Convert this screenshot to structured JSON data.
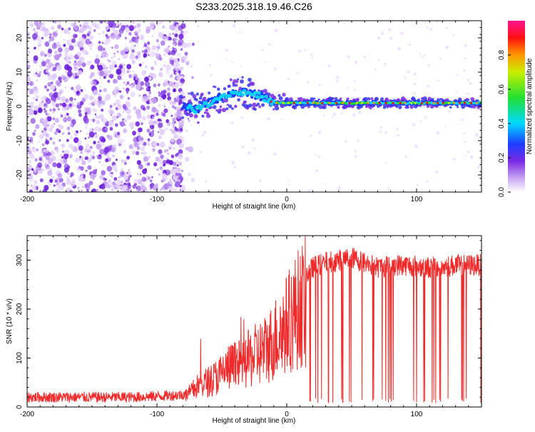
{
  "title": "S233.2025.318.19.46.C26",
  "chart_data": [
    {
      "type": "heatmap",
      "name": "spectrogram",
      "xlabel": "Height of straight line (km)",
      "ylabel": "Frequency (Hz)",
      "xlim": [
        -200,
        150
      ],
      "ylim": [
        -25,
        25
      ],
      "xticks": [
        -200,
        -100,
        0,
        100
      ],
      "yticks": [
        -20,
        -10,
        0,
        10,
        20
      ],
      "colorbar": {
        "label": "Normalized spectral amplitude",
        "range": [
          0,
          1
        ],
        "ticks": [
          0.0,
          0.2,
          0.4,
          0.6,
          0.8
        ],
        "colors": [
          "#ffffff",
          "#7a2be3",
          "#1e3cff",
          "#00d8ff",
          "#22e032",
          "#c8ee00",
          "#ff9900",
          "#ff1010",
          "#ff1493"
        ]
      },
      "noise_region_km": [
        -200,
        -80
      ],
      "signal_trace": [
        {
          "x": -80,
          "y": 0
        },
        {
          "x": -70,
          "y": -1
        },
        {
          "x": -60,
          "y": 1
        },
        {
          "x": -50,
          "y": 3
        },
        {
          "x": -40,
          "y": 4
        },
        {
          "x": -30,
          "y": 4
        },
        {
          "x": -20,
          "y": 3
        },
        {
          "x": -10,
          "y": 1
        },
        {
          "x": 0,
          "y": 1
        },
        {
          "x": 20,
          "y": 1
        },
        {
          "x": 50,
          "y": 1
        },
        {
          "x": 100,
          "y": 1
        },
        {
          "x": 150,
          "y": 1
        }
      ]
    },
    {
      "type": "line",
      "name": "snr",
      "xlabel": "Height of straight line (km)",
      "ylabel": "SNR (10 * v/v)",
      "xlim": [
        -200,
        150
      ],
      "ylim": [
        0,
        350
      ],
      "xticks": [
        -200,
        -100,
        0,
        100
      ],
      "yticks": [
        0,
        100,
        200,
        300
      ],
      "color": "#ee2a2a",
      "series": [
        {
          "name": "SNR",
          "x": [
            -200,
            -180,
            -160,
            -140,
            -120,
            -100,
            -80,
            -75,
            -70,
            -65,
            -60,
            -55,
            -50,
            -45,
            -40,
            -35,
            -30,
            -25,
            -20,
            -15,
            -10,
            -5,
            0,
            5,
            10,
            15,
            20,
            25,
            30,
            40,
            50,
            60,
            70,
            80,
            90,
            100,
            110,
            120,
            130,
            140,
            150
          ],
          "y": [
            20,
            20,
            20,
            20,
            20,
            22,
            25,
            35,
            50,
            60,
            65,
            75,
            85,
            100,
            105,
            110,
            120,
            130,
            140,
            150,
            170,
            190,
            210,
            235,
            255,
            270,
            285,
            290,
            295,
            300,
            305,
            295,
            285,
            290,
            290,
            288,
            285,
            285,
            290,
            290,
            290
          ]
        }
      ]
    }
  ]
}
